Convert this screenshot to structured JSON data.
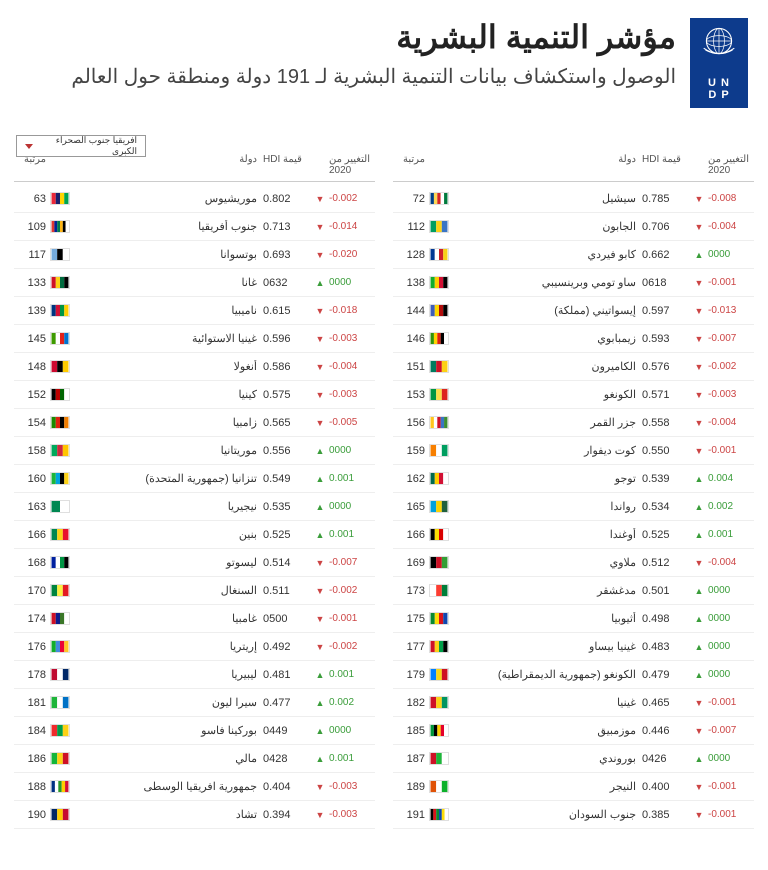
{
  "header": {
    "logo_line1": "U N",
    "logo_line2": "D P",
    "title": "مؤشر التنمية البشرية",
    "subtitle": "الوصول واستكشاف بيانات التنمية البشرية لـ 191 دولة ومنطقة حول العالم"
  },
  "filter": {
    "label": "افريقيا جنوب الصحراء الكبرى"
  },
  "colors": {
    "logo_bg": "#0d3b8c",
    "up": "#3a9d3a",
    "down": "#c44444"
  },
  "columns": {
    "rank": "مرتبة",
    "country": "دولة",
    "hdi": "HDI قيمة",
    "change": "التغيير من 2020"
  },
  "left": [
    {
      "rank": 63,
      "name": "موريشيوس",
      "hdi": "0.802",
      "dir": "down",
      "chg": "-0.002",
      "fc": [
        "#ea2839",
        "#1a206d",
        "#ffd500",
        "#00a551"
      ]
    },
    {
      "rank": 109,
      "name": "جنوب أفريقيا",
      "hdi": "0.713",
      "dir": "down",
      "chg": "-0.014",
      "fc": [
        "#de3831",
        "#002395",
        "#007a4d",
        "#ffb612",
        "#000000",
        "#ffffff"
      ]
    },
    {
      "rank": 117,
      "name": "بوتسوانا",
      "hdi": "0.693",
      "dir": "down",
      "chg": "-0.020",
      "fc": [
        "#75aadb",
        "#000000",
        "#ffffff"
      ]
    },
    {
      "rank": 133,
      "name": "غانا",
      "hdi": "0632",
      "dir": "up",
      "chg": "0000",
      "fc": [
        "#ce1126",
        "#fcd116",
        "#006b3f",
        "#000000"
      ]
    },
    {
      "rank": 139,
      "name": "ناميبيا",
      "hdi": "0.615",
      "dir": "down",
      "chg": "-0.018",
      "fc": [
        "#003580",
        "#d21034",
        "#009543",
        "#ffce00"
      ]
    },
    {
      "rank": 145,
      "name": "غينيا الاستوائية",
      "hdi": "0.596",
      "dir": "down",
      "chg": "-0.003",
      "fc": [
        "#3e9a00",
        "#ffffff",
        "#e32118",
        "#0073ce"
      ]
    },
    {
      "rank": 148,
      "name": "أنغولا",
      "hdi": "0.586",
      "dir": "down",
      "chg": "-0.004",
      "fc": [
        "#cc092f",
        "#000000",
        "#ffcb00"
      ]
    },
    {
      "rank": 152,
      "name": "كينيا",
      "hdi": "0.575",
      "dir": "down",
      "chg": "-0.003",
      "fc": [
        "#000000",
        "#bb0000",
        "#006600",
        "#ffffff"
      ]
    },
    {
      "rank": 154,
      "name": "زامبيا",
      "hdi": "0.565",
      "dir": "down",
      "chg": "-0.005",
      "fc": [
        "#198a00",
        "#de2010",
        "#000000",
        "#ef7d00"
      ]
    },
    {
      "rank": 158,
      "name": "موريتانيا",
      "hdi": "0.556",
      "dir": "up",
      "chg": "0000",
      "fc": [
        "#00a95c",
        "#cd2a3e",
        "#ffc400"
      ]
    },
    {
      "rank": 160,
      "name": "تنزانيا (جمهورية المتحدة)",
      "hdi": "0.549",
      "dir": "up",
      "chg": "0.001",
      "fc": [
        "#1eb53a",
        "#00a3dd",
        "#000000",
        "#fcd116"
      ]
    },
    {
      "rank": 163,
      "name": "نيجيريا",
      "hdi": "0.535",
      "dir": "up",
      "chg": "0000",
      "fc": [
        "#008751",
        "#ffffff"
      ]
    },
    {
      "rank": 166,
      "name": "بنين",
      "hdi": "0.525",
      "dir": "up",
      "chg": "0.001",
      "fc": [
        "#008751",
        "#fcd116",
        "#e8112d"
      ]
    },
    {
      "rank": 168,
      "name": "ليسوتو",
      "hdi": "0.514",
      "dir": "down",
      "chg": "-0.007",
      "fc": [
        "#00209f",
        "#ffffff",
        "#009543",
        "#000000"
      ]
    },
    {
      "rank": 170,
      "name": "السنغال",
      "hdi": "0.511",
      "dir": "down",
      "chg": "-0.002",
      "fc": [
        "#00853f",
        "#fdef42",
        "#e31b23"
      ]
    },
    {
      "rank": 174,
      "name": "غامبيا",
      "hdi": "0500",
      "dir": "down",
      "chg": "-0.001",
      "fc": [
        "#ce1126",
        "#0c1c8c",
        "#3a7728",
        "#ffffff"
      ]
    },
    {
      "rank": 176,
      "name": "إريتريا",
      "hdi": "0.492",
      "dir": "down",
      "chg": "-0.002",
      "fc": [
        "#12ad2b",
        "#4189dd",
        "#ea0437",
        "#ffc726"
      ]
    },
    {
      "rank": 178,
      "name": "ليبيريا",
      "hdi": "0.481",
      "dir": "up",
      "chg": "0.001",
      "fc": [
        "#bf0a30",
        "#ffffff",
        "#002868"
      ]
    },
    {
      "rank": 181,
      "name": "سيرا ليون",
      "hdi": "0.477",
      "dir": "up",
      "chg": "0.002",
      "fc": [
        "#1eb53a",
        "#ffffff",
        "#0072c6"
      ]
    },
    {
      "rank": 184,
      "name": "بوركينا فاسو",
      "hdi": "0449",
      "dir": "up",
      "chg": "0000",
      "fc": [
        "#ef2b2d",
        "#009e49",
        "#fcd116"
      ]
    },
    {
      "rank": 186,
      "name": "مالي",
      "hdi": "0428",
      "dir": "up",
      "chg": "0.001",
      "fc": [
        "#14b53a",
        "#fcd116",
        "#ce1126"
      ]
    },
    {
      "rank": 188,
      "name": "جمهورية افريقيا الوسطى",
      "hdi": "0.404",
      "dir": "down",
      "chg": "-0.003",
      "fc": [
        "#003082",
        "#ffffff",
        "#289728",
        "#ffce00",
        "#d21034"
      ]
    },
    {
      "rank": 190,
      "name": "تشاد",
      "hdi": "0.394",
      "dir": "down",
      "chg": "-0.003",
      "fc": [
        "#002664",
        "#fecb00",
        "#c60c30"
      ]
    }
  ],
  "right": [
    {
      "rank": 72,
      "name": "سيشيل",
      "hdi": "0.785",
      "dir": "down",
      "chg": "-0.008",
      "fc": [
        "#003f87",
        "#fcd856",
        "#d62828",
        "#ffffff",
        "#007a3d"
      ]
    },
    {
      "rank": 112,
      "name": "الجابون",
      "hdi": "0.706",
      "dir": "down",
      "chg": "-0.004",
      "fc": [
        "#009e60",
        "#fcd116",
        "#3a75c4"
      ]
    },
    {
      "rank": 128,
      "name": "كابو فيردي",
      "hdi": "0.662",
      "dir": "up",
      "chg": "0000",
      "fc": [
        "#003893",
        "#ffffff",
        "#cf2027",
        "#f7d116"
      ]
    },
    {
      "rank": 138,
      "name": "ساو تومي وبرينسيبي",
      "hdi": "0618",
      "dir": "down",
      "chg": "-0.001",
      "fc": [
        "#12ad2b",
        "#ffce00",
        "#d21034",
        "#000000"
      ]
    },
    {
      "rank": 144,
      "name": "إيسواتيني (مملكة)",
      "hdi": "0.597",
      "dir": "down",
      "chg": "-0.013",
      "fc": [
        "#3e5eb9",
        "#ffd900",
        "#b10c0c",
        "#000000"
      ]
    },
    {
      "rank": 146,
      "name": "زيمبابوي",
      "hdi": "0.593",
      "dir": "down",
      "chg": "-0.007",
      "fc": [
        "#319208",
        "#ffd200",
        "#de2010",
        "#000000",
        "#ffffff"
      ]
    },
    {
      "rank": 151,
      "name": "الكاميرون",
      "hdi": "0.576",
      "dir": "down",
      "chg": "-0.002",
      "fc": [
        "#007a5e",
        "#ce1126",
        "#fcd116"
      ]
    },
    {
      "rank": 153,
      "name": "الكونغو",
      "hdi": "0.571",
      "dir": "down",
      "chg": "-0.003",
      "fc": [
        "#009543",
        "#fbde4a",
        "#dc241f"
      ]
    },
    {
      "rank": 156,
      "name": "جزر القمر",
      "hdi": "0.558",
      "dir": "down",
      "chg": "-0.004",
      "fc": [
        "#ffc61e",
        "#ffffff",
        "#ce1126",
        "#3a75c4",
        "#3d8e33"
      ]
    },
    {
      "rank": 159,
      "name": "كوت ديفوار",
      "hdi": "0.550",
      "dir": "down",
      "chg": "-0.001",
      "fc": [
        "#f77f00",
        "#ffffff",
        "#009e60"
      ]
    },
    {
      "rank": 162,
      "name": "توجو",
      "hdi": "0.539",
      "dir": "up",
      "chg": "0.004",
      "fc": [
        "#006a4e",
        "#ffce00",
        "#d21034",
        "#ffffff"
      ]
    },
    {
      "rank": 165,
      "name": "رواندا",
      "hdi": "0.534",
      "dir": "up",
      "chg": "0.002",
      "fc": [
        "#00a1de",
        "#fad201",
        "#20603d"
      ]
    },
    {
      "rank": 166,
      "name": "أوغندا",
      "hdi": "0.525",
      "dir": "up",
      "chg": "0.001",
      "fc": [
        "#000000",
        "#fcdc04",
        "#d90000",
        "#ffffff"
      ]
    },
    {
      "rank": 169,
      "name": "ملاوي",
      "hdi": "0.512",
      "dir": "down",
      "chg": "-0.004",
      "fc": [
        "#000000",
        "#ce1126",
        "#339e35"
      ]
    },
    {
      "rank": 173,
      "name": "مدغشقر",
      "hdi": "0.501",
      "dir": "up",
      "chg": "0000",
      "fc": [
        "#ffffff",
        "#fc3d32",
        "#007e3a"
      ]
    },
    {
      "rank": 175,
      "name": "أثيوبيا",
      "hdi": "0.498",
      "dir": "up",
      "chg": "0000",
      "fc": [
        "#078930",
        "#fcdd09",
        "#da121a",
        "#0f47af"
      ]
    },
    {
      "rank": 177,
      "name": "غينيا بيساو",
      "hdi": "0.483",
      "dir": "up",
      "chg": "0000",
      "fc": [
        "#ce1126",
        "#fcd116",
        "#009e49",
        "#000000"
      ]
    },
    {
      "rank": 179,
      "name": "الكونغو (جمهورية الديمقراطية)",
      "hdi": "0.479",
      "dir": "up",
      "chg": "0000",
      "fc": [
        "#007fff",
        "#f7d618",
        "#ce1021"
      ]
    },
    {
      "rank": 182,
      "name": "غينيا",
      "hdi": "0.465",
      "dir": "down",
      "chg": "-0.001",
      "fc": [
        "#ce1126",
        "#fcd116",
        "#009460"
      ]
    },
    {
      "rank": 185,
      "name": "موزمبيق",
      "hdi": "0.446",
      "dir": "down",
      "chg": "-0.007",
      "fc": [
        "#009639",
        "#000000",
        "#ffd100",
        "#e4002b",
        "#ffffff"
      ]
    },
    {
      "rank": 187,
      "name": "بوروندي",
      "hdi": "0426",
      "dir": "up",
      "chg": "0000",
      "fc": [
        "#ce1126",
        "#1eb53a",
        "#ffffff"
      ]
    },
    {
      "rank": 189,
      "name": "النيجر",
      "hdi": "0.400",
      "dir": "down",
      "chg": "-0.001",
      "fc": [
        "#e05206",
        "#ffffff",
        "#0db02b"
      ]
    },
    {
      "rank": 191,
      "name": "جنوب السودان",
      "hdi": "0.385",
      "dir": "down",
      "chg": "-0.001",
      "fc": [
        "#000000",
        "#da121a",
        "#078930",
        "#0f47af",
        "#fcdd09",
        "#ffffff"
      ]
    }
  ]
}
